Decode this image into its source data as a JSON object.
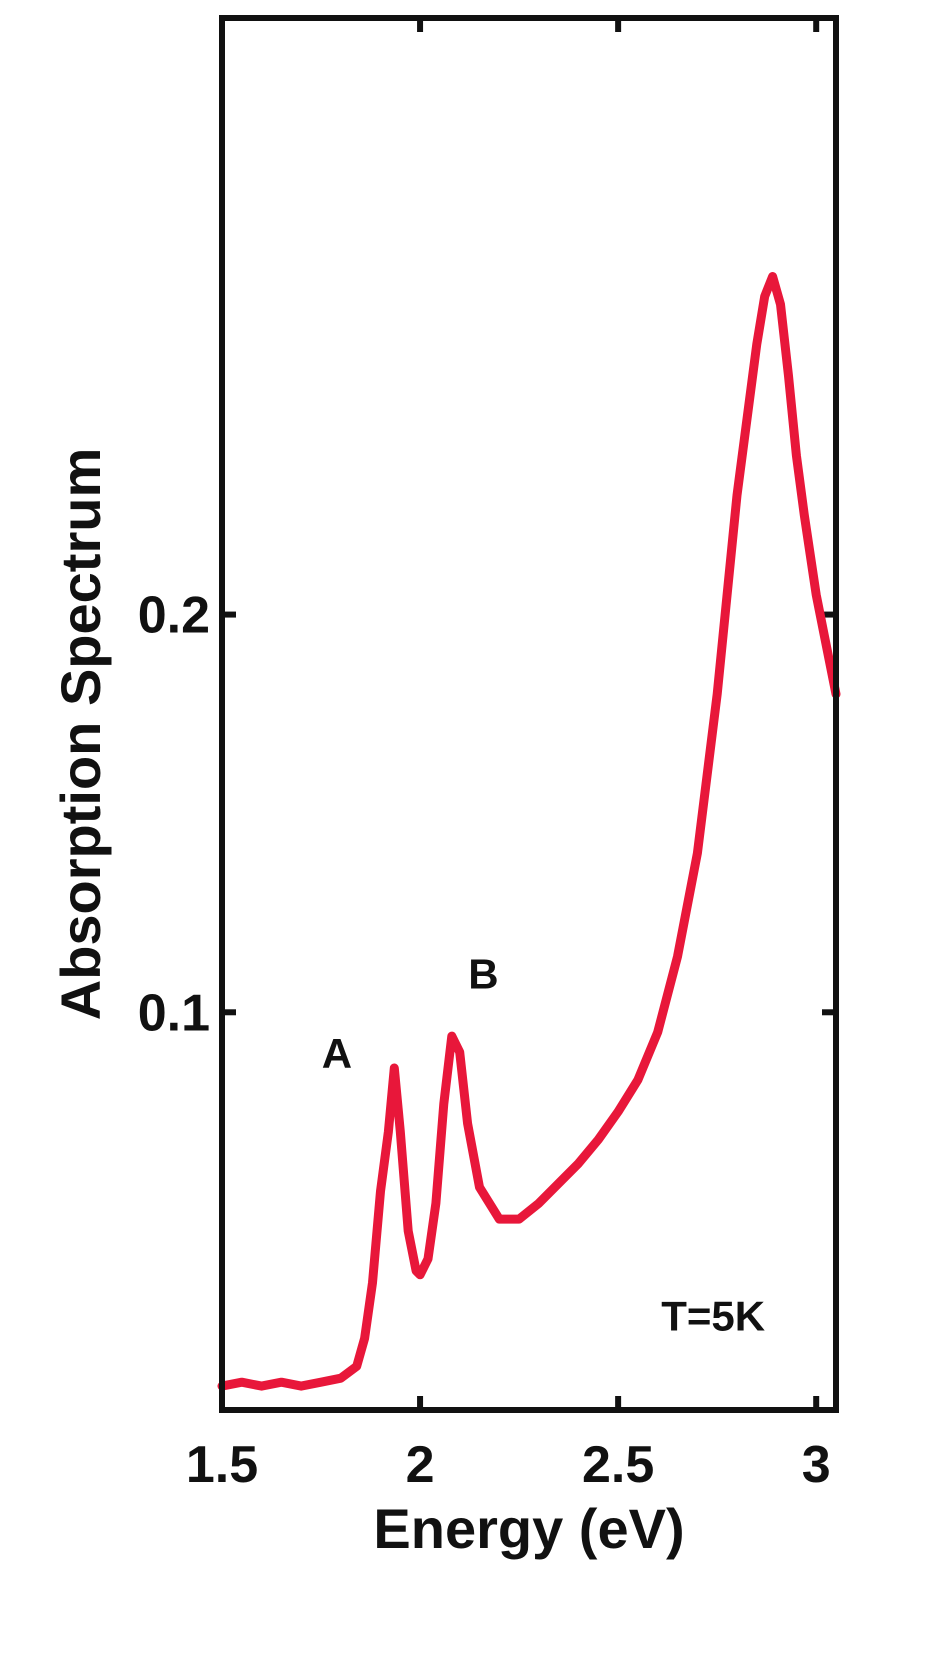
{
  "chart_data": {
    "type": "line",
    "xlabel": "Energy (eV)",
    "ylabel": "Absorption Spectrum",
    "xlim": [
      1.5,
      3.05
    ],
    "ylim": [
      0.0,
      0.35
    ],
    "xticks": [
      1.5,
      2,
      2.5,
      3
    ],
    "xtick_labels": [
      "1.5",
      "2",
      "2.5",
      "3"
    ],
    "yticks": [
      0.1,
      0.2
    ],
    "ytick_labels": [
      "0.1",
      "0.2"
    ],
    "grid": false,
    "series_color": "#e8173a",
    "series": [
      {
        "x": [
          1.5,
          1.55,
          1.6,
          1.65,
          1.7,
          1.75,
          1.8,
          1.84,
          1.86,
          1.88,
          1.9,
          1.92,
          1.935,
          1.95,
          1.97,
          1.99,
          2.0,
          2.02,
          2.04,
          2.06,
          2.08,
          2.1,
          2.12,
          2.15,
          2.2,
          2.25,
          2.3,
          2.35,
          2.4,
          2.45,
          2.5,
          2.55,
          2.6,
          2.65,
          2.7,
          2.75,
          2.8,
          2.85,
          2.87,
          2.89,
          2.91,
          2.93,
          2.95,
          2.97,
          3.0,
          3.02,
          3.05
        ],
        "y": [
          0.006,
          0.007,
          0.006,
          0.007,
          0.006,
          0.007,
          0.008,
          0.011,
          0.018,
          0.032,
          0.055,
          0.07,
          0.086,
          0.07,
          0.045,
          0.035,
          0.034,
          0.038,
          0.052,
          0.077,
          0.094,
          0.09,
          0.072,
          0.056,
          0.048,
          0.048,
          0.052,
          0.057,
          0.062,
          0.068,
          0.075,
          0.083,
          0.095,
          0.114,
          0.14,
          0.18,
          0.23,
          0.268,
          0.28,
          0.285,
          0.278,
          0.26,
          0.24,
          0.225,
          0.205,
          0.195,
          0.18
        ]
      }
    ],
    "annotations": [
      {
        "text": "A",
        "x": 1.79,
        "y": 0.086
      },
      {
        "text": "B",
        "x": 2.16,
        "y": 0.106
      },
      {
        "text": "T=5K",
        "x": 2.74,
        "y": 0.02
      }
    ]
  }
}
